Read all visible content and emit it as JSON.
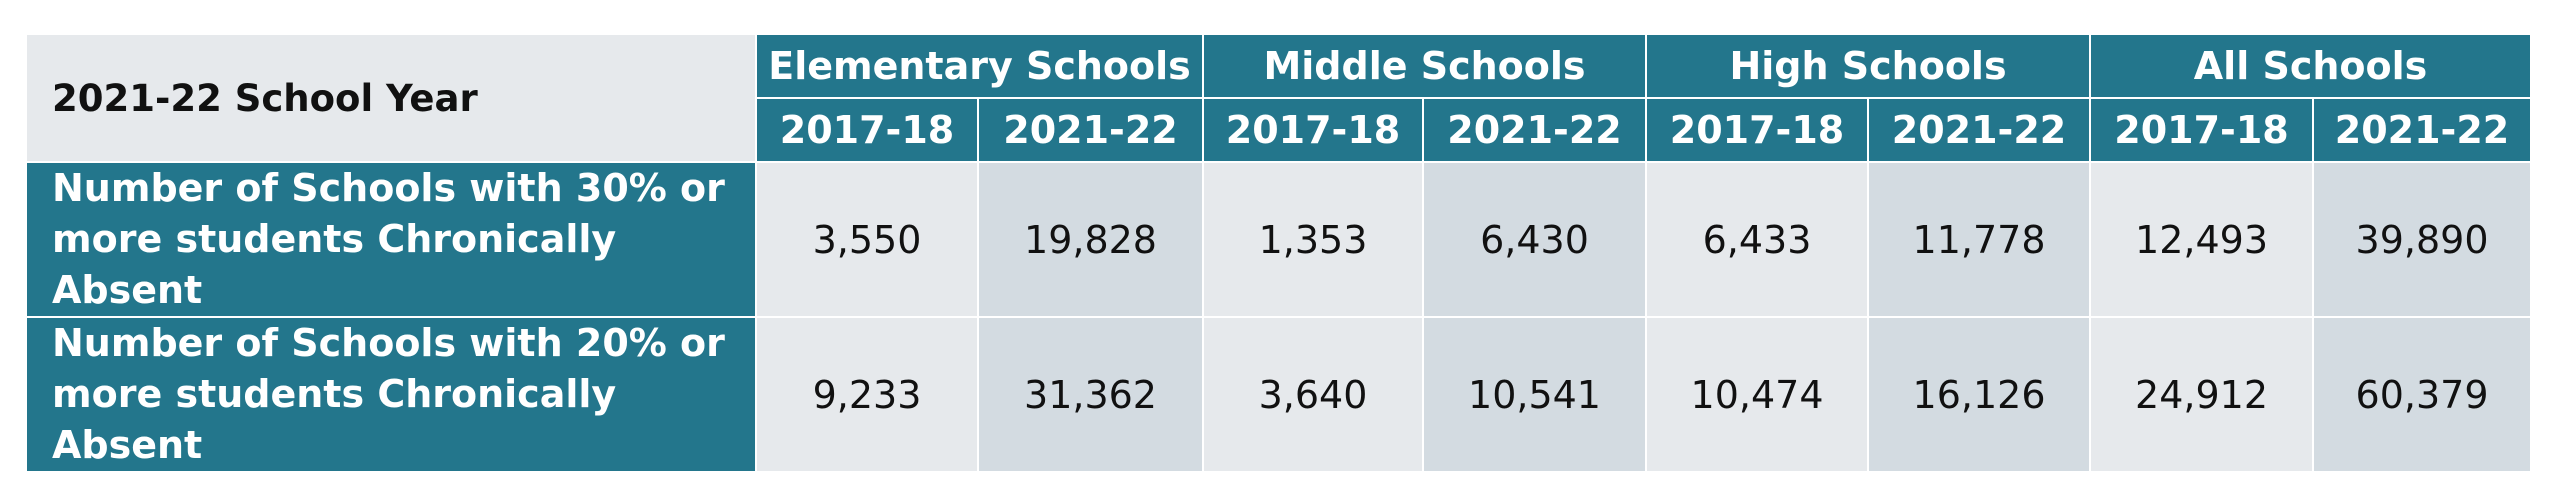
{
  "chart_data": {
    "type": "table",
    "corner_label": "2021-22 School Year",
    "groups": [
      "Elementary Schools",
      "Middle Schools",
      "High Schools",
      "All Schools"
    ],
    "years": [
      "2017-18",
      "2021-22"
    ],
    "rows": [
      {
        "label_lines": [
          "Number of Schools with 30% or",
          "more students Chronically Absent"
        ],
        "values": [
          "3,550",
          "19,828",
          "1,353",
          "6,430",
          "6,433",
          "11,778",
          "12,493",
          "39,890"
        ]
      },
      {
        "label_lines": [
          "Number of Schools with 20% or",
          "more students Chronically Absent"
        ],
        "values": [
          "9,233",
          "31,362",
          "3,640",
          "10,541",
          "10,474",
          "16,126",
          "24,912",
          "60,379"
        ]
      }
    ],
    "colors": {
      "header": "#23768c",
      "cell_light": "#e6e9ec",
      "cell_shaded": "#d3dbe1"
    }
  }
}
